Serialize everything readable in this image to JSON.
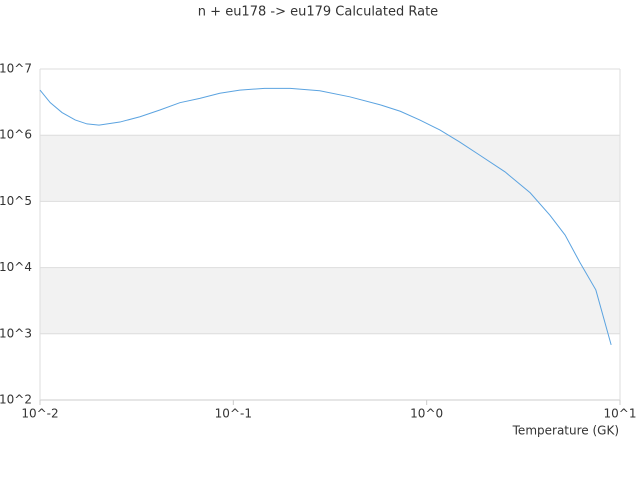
{
  "chart_data": {
    "type": "line",
    "title": "n + eu178 -> eu179 Calculated Rate",
    "x_label": "Temperature (GK)",
    "x": [
      0.01,
      0.0113,
      0.013,
      0.0152,
      0.0175,
      0.0202,
      0.0259,
      0.0329,
      0.0417,
      0.0529,
      0.0671,
      0.0851,
      0.108,
      0.145,
      0.197,
      0.28,
      0.4,
      0.57,
      0.73,
      0.92,
      1.17,
      1.48,
      1.88,
      2.54,
      3.43,
      4.34,
      5.2,
      6.2,
      7.5,
      9.0
    ],
    "series": [
      {
        "color": "#5ba3e0",
        "values": [
          4800000,
          3100000,
          2200000,
          1700000,
          1480000,
          1420000,
          1580000,
          1900000,
          2400000,
          3100000,
          3600000,
          4300000,
          4800000,
          5100000,
          5100000,
          4700000,
          3800000,
          2900000,
          2300000,
          1700000,
          1200000,
          790000,
          500000,
          280000,
          135000,
          62000,
          31000,
          12000,
          4600,
          680
        ]
      }
    ],
    "xlim": [
      0.01,
      10
    ],
    "ylim": [
      100,
      10000000
    ],
    "xscale": "log",
    "yscale": "log",
    "xticks": [
      {
        "value": 0.01,
        "label": "10^-2"
      },
      {
        "value": 0.1,
        "label": "10^-1"
      },
      {
        "value": 1,
        "label": "10^0"
      },
      {
        "value": 10,
        "label": "10^1"
      }
    ],
    "yticks": [
      {
        "value": 100,
        "label": "10^2"
      },
      {
        "value": 1000,
        "label": "10^3"
      },
      {
        "value": 10000,
        "label": "10^4"
      },
      {
        "value": 100000,
        "label": "10^5"
      },
      {
        "value": 1000000,
        "label": "10^6"
      },
      {
        "value": 10000000,
        "label": "10^7"
      }
    ],
    "grid": true,
    "band_color": "#f2f2f2"
  }
}
